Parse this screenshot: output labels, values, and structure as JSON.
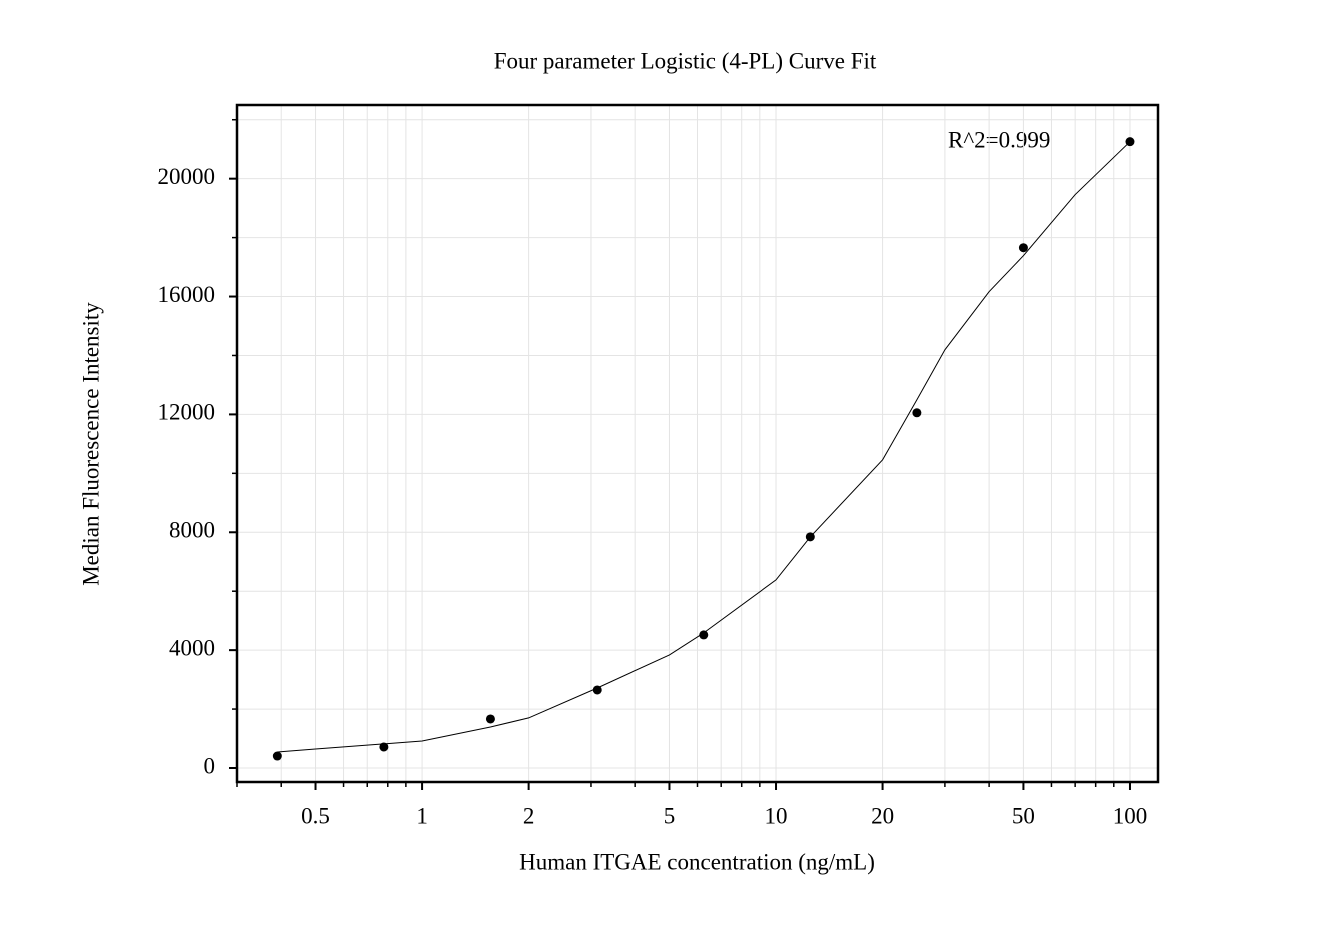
{
  "chart_data": {
    "type": "scatter",
    "title": "Four parameter Logistic (4-PL) Curve Fit",
    "x_label": "Human ITGAE concentration (ng/mL)",
    "y_label": "Median Fluorescence Intensity",
    "annotation": "R^2=0.999",
    "x_log": true,
    "xlim": [
      0.3,
      120
    ],
    "ylim": [
      -475,
      22500
    ],
    "xticks": [
      0.5,
      1,
      2,
      5,
      10,
      20,
      50,
      100
    ],
    "xminor_ticks": [
      0.3,
      0.4,
      0.6,
      0.7,
      0.8,
      0.9,
      3,
      4,
      6,
      7,
      8,
      9,
      30,
      40,
      60,
      70,
      80,
      90
    ],
    "yticks": [
      0,
      4000,
      8000,
      12000,
      16000,
      20000
    ],
    "yminor_ticks": [
      2000,
      6000,
      10000,
      14000,
      18000,
      22000
    ],
    "grid": true,
    "series": [
      {
        "mode": "line",
        "color": "#000000",
        "x": [
          0.39,
          0.5,
          1,
          1.56,
          2,
          3.125,
          5,
          6.25,
          10,
          12.5,
          20,
          25,
          30,
          40,
          50,
          70,
          100
        ],
        "values": [
          543,
          645,
          917,
          1392,
          1700,
          2716,
          3837,
          4584,
          6384,
          7844,
          10458,
          12496,
          14193,
          16163,
          17385,
          19457,
          21256
        ]
      },
      {
        "mode": "markers",
        "color": "#000000",
        "x": [
          0.39,
          0.78,
          1.56,
          3.125,
          6.25,
          12.5,
          25,
          50,
          100
        ],
        "values": [
          407,
          713,
          1664,
          2649,
          4516,
          7844,
          12054,
          17657,
          21256
        ]
      }
    ]
  }
}
